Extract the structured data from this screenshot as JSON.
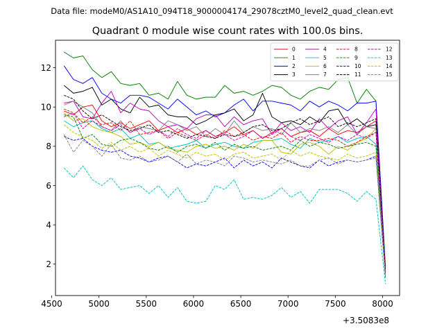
{
  "header": {
    "data_file_text": "Data file: modeM0/AS1A10_094T18_9000004174_29078cztM0_level2_quad_clean.evt"
  },
  "chart_data": {
    "type": "line",
    "title": "Quadrant 0 module wise count rates with 100.0s bins.",
    "xlabel": "",
    "ylabel": "",
    "x_offset_label": "+3.5083e8",
    "xlim": [
      4540,
      8180
    ],
    "ylim": [
      0.4,
      13.4
    ],
    "xticks": [
      4500,
      5000,
      5500,
      6000,
      6500,
      7000,
      7500,
      8000
    ],
    "xtick_labels": [
      "4500",
      "5000",
      "5500",
      "6000",
      "6500",
      "7000",
      "7500",
      "8000"
    ],
    "yticks": [
      2,
      4,
      6,
      8,
      10,
      12
    ],
    "ytick_labels": [
      "2",
      "4",
      "6",
      "8",
      "10",
      "12"
    ],
    "grid": false,
    "legend_position": "top-right",
    "legend_columns": 4,
    "x": [
      4630,
      4730,
      4830,
      4930,
      5030,
      5130,
      5230,
      5330,
      5430,
      5530,
      5630,
      5730,
      5830,
      5930,
      6030,
      6130,
      6230,
      6330,
      6430,
      6530,
      6630,
      6730,
      6830,
      6930,
      7030,
      7130,
      7230,
      7330,
      7430,
      7530,
      7630,
      7730,
      7830,
      7930,
      8030
    ],
    "series": [
      {
        "name": "0",
        "color": "#ff0000",
        "dash": "solid",
        "values": [
          9.8,
          9.6,
          10.0,
          10.1,
          9.3,
          9.0,
          9.2,
          8.9,
          9.1,
          9.3,
          8.8,
          9.0,
          8.7,
          8.9,
          8.6,
          8.8,
          8.5,
          8.7,
          9.0,
          8.6,
          8.8,
          8.4,
          8.7,
          8.9,
          8.5,
          8.7,
          8.8,
          8.5,
          8.9,
          8.6,
          8.8,
          8.7,
          9.0,
          9.3,
          1.8
        ]
      },
      {
        "name": "1",
        "color": "#008000",
        "dash": "solid",
        "values": [
          12.8,
          12.5,
          12.6,
          11.9,
          11.5,
          11.8,
          11.2,
          11.1,
          11.2,
          10.6,
          10.7,
          10.4,
          11.3,
          10.6,
          10.4,
          10.5,
          10.5,
          11.1,
          10.7,
          10.8,
          10.6,
          10.8,
          11.1,
          11.0,
          10.6,
          10.4,
          10.8,
          11.0,
          10.9,
          11.4,
          11.5,
          10.2,
          10.9,
          10.3,
          1.9
        ]
      },
      {
        "name": "2",
        "color": "#0000ff",
        "dash": "solid",
        "values": [
          12.1,
          11.4,
          11.2,
          11.5,
          10.7,
          10.4,
          10.2,
          10.6,
          10.6,
          10.5,
          10.2,
          9.9,
          10.4,
          10.0,
          9.6,
          9.8,
          9.5,
          9.7,
          10.1,
          10.4,
          9.8,
          10.3,
          10.3,
          10.2,
          10.1,
          9.8,
          10.3,
          10.0,
          10.3,
          10.1,
          9.8,
          10.2,
          10.2,
          10.3,
          1.7
        ]
      },
      {
        "name": "3",
        "color": "#000000",
        "dash": "solid",
        "values": [
          11.1,
          10.7,
          10.8,
          11.0,
          10.1,
          10.4,
          9.9,
          9.7,
          10.5,
          10.0,
          10.1,
          9.6,
          9.5,
          9.5,
          9.1,
          9.3,
          9.6,
          9.7,
          9.9,
          9.3,
          9.6,
          10.7,
          9.5,
          9.2,
          9.3,
          9.1,
          9.5,
          9.2,
          9.8,
          9.9,
          9.1,
          9.4,
          9.0,
          9.1,
          1.6
        ]
      },
      {
        "name": "4",
        "color": "#c000c0",
        "dash": "solid",
        "values": [
          10.2,
          10.3,
          9.5,
          9.4,
          10.2,
          10.8,
          9.7,
          10.2,
          9.9,
          9.8,
          9.3,
          9.0,
          9.1,
          8.9,
          9.4,
          9.6,
          9.6,
          9.0,
          9.5,
          9.1,
          9.3,
          9.4,
          8.6,
          9.2,
          8.8,
          9.0,
          8.7,
          9.4,
          8.9,
          9.3,
          9.5,
          8.6,
          9.2,
          9.9,
          1.6
        ]
      },
      {
        "name": "5",
        "color": "#00c0c0",
        "dash": "solid",
        "values": [
          9.3,
          9.0,
          9.2,
          9.3,
          8.9,
          8.7,
          8.9,
          8.4,
          8.6,
          8.1,
          8.2,
          7.9,
          8.0,
          8.1,
          8.3,
          7.9,
          8.1,
          8.2,
          8.0,
          7.9,
          8.2,
          8.3,
          8.3,
          8.4,
          8.1,
          7.9,
          8.4,
          8.2,
          8.3,
          8.5,
          8.2,
          8.4,
          8.5,
          8.1,
          1.4
        ]
      },
      {
        "name": "6",
        "color": "#c0c000",
        "dash": "solid",
        "values": [
          9.7,
          9.3,
          9.4,
          9.0,
          8.8,
          8.7,
          8.5,
          8.1,
          8.2,
          8.0,
          8.2,
          7.9,
          7.8,
          7.7,
          8.0,
          8.1,
          7.9,
          8.0,
          7.8,
          8.1,
          7.9,
          8.3,
          8.3,
          7.7,
          7.6,
          8.1,
          8.2,
          8.0,
          7.6,
          8.0,
          7.8,
          8.2,
          8.4,
          8.9,
          1.5
        ]
      },
      {
        "name": "7",
        "color": "#808080",
        "dash": "solid",
        "values": [
          10.1,
          10.3,
          10.0,
          9.7,
          9.0,
          8.8,
          9.3,
          8.7,
          9.0,
          8.9,
          8.8,
          9.3,
          9.1,
          8.8,
          9.0,
          8.5,
          8.9,
          8.6,
          9.3,
          8.7,
          9.0,
          8.8,
          8.9,
          8.6,
          9.2,
          8.7,
          8.9,
          8.8,
          9.0,
          8.7,
          9.1,
          8.6,
          9.0,
          8.9,
          1.6
        ]
      },
      {
        "name": "8",
        "color": "#ff0000",
        "dash": "dashed",
        "values": [
          9.9,
          9.7,
          9.2,
          9.5,
          9.1,
          9.2,
          8.8,
          9.3,
          8.6,
          8.7,
          8.8,
          8.4,
          8.7,
          8.5,
          8.3,
          8.6,
          8.4,
          8.8,
          8.5,
          8.6,
          8.3,
          8.5,
          8.4,
          8.7,
          8.2,
          8.5,
          8.3,
          8.3,
          8.4,
          8.3,
          8.0,
          8.2,
          8.5,
          8.7,
          1.6
        ]
      },
      {
        "name": "9",
        "color": "#008000",
        "dash": "dashed",
        "values": [
          9.6,
          9.5,
          8.4,
          8.6,
          8.1,
          8.0,
          8.3,
          8.4,
          8.2,
          7.9,
          7.8,
          8.0,
          7.7,
          8.0,
          8.1,
          7.9,
          8.2,
          7.8,
          8.1,
          7.9,
          8.0,
          7.8,
          7.9,
          8.0,
          7.8,
          8.3,
          8.0,
          8.2,
          8.1,
          7.9,
          8.0,
          8.1,
          8.2,
          8.0,
          1.5
        ]
      },
      {
        "name": "10",
        "color": "#0000ff",
        "dash": "dashed",
        "values": [
          8.5,
          8.3,
          8.4,
          8.0,
          7.8,
          7.7,
          7.8,
          7.5,
          7.4,
          7.2,
          7.4,
          7.5,
          7.2,
          6.9,
          7.1,
          7.0,
          7.2,
          7.4,
          6.9,
          7.3,
          7.0,
          7.2,
          6.9,
          7.4,
          7.2,
          7.0,
          6.9,
          7.3,
          7.0,
          7.2,
          7.3,
          7.2,
          7.3,
          7.5,
          1.4
        ]
      },
      {
        "name": "11",
        "color": "#000000",
        "dash": "dashed",
        "values": [
          10.6,
          10.4,
          9.8,
          9.4,
          9.6,
          9.3,
          9.0,
          8.8,
          8.9,
          9.1,
          8.7,
          8.8,
          8.6,
          8.4,
          8.6,
          8.5,
          8.4,
          8.6,
          8.5,
          8.7,
          9.0,
          9.1,
          8.8,
          8.9,
          9.2,
          9.4,
          9.1,
          9.3,
          9.5,
          9.0,
          9.2,
          9.0,
          9.2,
          9.4,
          1.6
        ]
      },
      {
        "name": "12",
        "color": "#c000c0",
        "dash": "dashed",
        "values": [
          9.5,
          9.7,
          8.9,
          9.3,
          9.0,
          8.8,
          9.1,
          8.7,
          8.9,
          8.6,
          8.8,
          8.5,
          8.9,
          8.6,
          8.4,
          8.8,
          8.5,
          8.6,
          8.3,
          8.5,
          8.8,
          8.4,
          8.6,
          8.9,
          8.5,
          8.3,
          8.6,
          8.4,
          8.2,
          8.5,
          8.3,
          8.6,
          8.4,
          8.7,
          1.5
        ]
      },
      {
        "name": "13",
        "color": "#00c0c0",
        "dash": "dashed",
        "values": [
          6.9,
          6.4,
          7.0,
          6.3,
          6.0,
          6.4,
          5.8,
          5.9,
          6.0,
          5.6,
          6.0,
          5.4,
          5.9,
          5.2,
          5.1,
          5.2,
          6.0,
          5.8,
          6.3,
          5.3,
          5.4,
          5.3,
          5.5,
          5.9,
          5.4,
          5.7,
          5.1,
          5.8,
          5.8,
          5.8,
          5.6,
          5.2,
          5.7,
          5.3,
          1.0
        ]
      },
      {
        "name": "14",
        "color": "#c0c000",
        "dash": "dashed",
        "values": [
          9.1,
          8.7,
          8.5,
          8.3,
          7.9,
          8.2,
          7.8,
          8.0,
          7.7,
          7.9,
          7.5,
          7.8,
          7.6,
          7.4,
          7.7,
          7.5,
          7.6,
          7.3,
          7.6,
          7.7,
          7.4,
          7.5,
          7.6,
          7.3,
          7.8,
          7.5,
          7.7,
          7.5,
          7.4,
          7.3,
          7.6,
          7.4,
          7.5,
          7.7,
          1.4
        ]
      },
      {
        "name": "15",
        "color": "#808080",
        "dash": "dashed",
        "values": [
          8.6,
          7.7,
          8.3,
          8.0,
          7.5,
          8.1,
          7.4,
          7.3,
          7.5,
          7.2,
          7.3,
          7.5,
          7.2,
          7.6,
          7.1,
          7.3,
          7.2,
          7.0,
          7.5,
          7.4,
          7.2,
          7.3,
          7.2,
          7.1,
          7.3,
          7.0,
          7.0,
          7.3,
          7.4,
          7.1,
          7.3,
          7.2,
          7.3,
          7.4,
          1.3
        ]
      }
    ]
  }
}
